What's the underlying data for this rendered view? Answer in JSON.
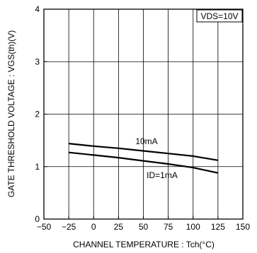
{
  "chart_data": {
    "type": "line",
    "xlabel": "CHANNEL  TEMPERATURE : Tch(°C)",
    "ylabel": "GATE THRESHOLD VOLTAGE : VGS(th)(V)",
    "xlim": [
      -50,
      150
    ],
    "ylim": [
      0,
      4
    ],
    "x_ticks": [
      -50,
      -25,
      0,
      25,
      50,
      75,
      100,
      125,
      150
    ],
    "y_ticks": [
      0,
      1,
      2,
      3,
      4
    ],
    "x_tick_labels": [
      "−50",
      "−25",
      "0",
      "25",
      "50",
      "75",
      "100",
      "125",
      "150"
    ],
    "y_tick_labels": [
      "0",
      "1",
      "2",
      "3",
      "4"
    ],
    "grid": true,
    "condition_box": "VDS=10V",
    "series": [
      {
        "name": "10mA",
        "x": [
          -25,
          0,
          25,
          50,
          75,
          100,
          125
        ],
        "y": [
          1.44,
          1.39,
          1.35,
          1.3,
          1.25,
          1.2,
          1.12
        ]
      },
      {
        "name": "ID=1mA",
        "x": [
          -25,
          0,
          25,
          50,
          75,
          100,
          125
        ],
        "y": [
          1.27,
          1.22,
          1.17,
          1.11,
          1.05,
          0.98,
          0.88
        ]
      }
    ]
  }
}
